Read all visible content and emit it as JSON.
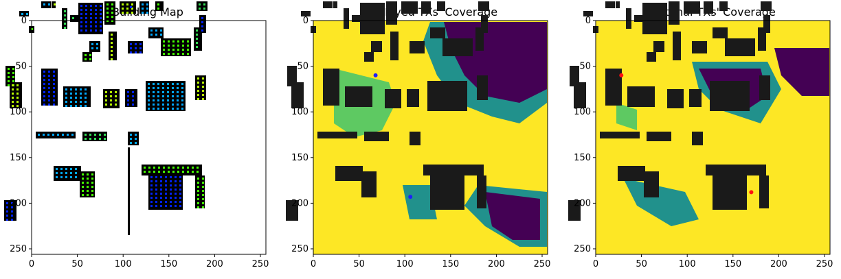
{
  "chart_data": [
    {
      "type": "heatmap",
      "title": "Building Map",
      "xlim": [
        0,
        256
      ],
      "ylim": [
        256,
        0
      ],
      "x_ticks": [
        0,
        50,
        100,
        150,
        200,
        250
      ],
      "y_ticks": [
        0,
        50,
        100,
        150,
        200,
        250
      ],
      "x_tick_labels": [
        "0",
        "50",
        "100",
        "150",
        "200",
        "250"
      ],
      "y_tick_labels": [
        "0",
        "50",
        "100",
        "150",
        "200",
        "250"
      ],
      "background_color": "#ffffff",
      "building_color": "#000000",
      "buildings": [
        {
          "x": 60,
          "y": 2,
          "w": 14,
          "h": 10
        },
        {
          "x": 28,
          "y": 16,
          "w": 14,
          "h": 8
        },
        {
          "x": 75,
          "y": 2,
          "w": 6,
          "h": 10
        },
        {
          "x": 90,
          "y": 12,
          "w": 8,
          "h": 30
        },
        {
          "x": 114,
          "y": 4,
          "w": 36,
          "h": 46
        },
        {
          "x": 152,
          "y": 2,
          "w": 16,
          "h": 34
        },
        {
          "x": 174,
          "y": 2,
          "w": 24,
          "h": 18
        },
        {
          "x": 186,
          "y": 6,
          "w": 12,
          "h": 10
        },
        {
          "x": 203,
          "y": 2,
          "w": 14,
          "h": 18
        },
        {
          "x": 226,
          "y": 2,
          "w": 12,
          "h": 14
        },
        {
          "x": 286,
          "y": 2,
          "w": 16,
          "h": 14
        },
        {
          "x": 290,
          "y": 22,
          "w": 10,
          "h": 26
        },
        {
          "x": 42,
          "y": 38,
          "w": 8,
          "h": 10
        },
        {
          "x": 102,
          "y": 22,
          "w": 12,
          "h": 10
        },
        {
          "x": 130,
          "y": 60,
          "w": 16,
          "h": 16
        },
        {
          "x": 120,
          "y": 76,
          "w": 14,
          "h": 14
        },
        {
          "x": 158,
          "y": 46,
          "w": 12,
          "h": 42
        },
        {
          "x": 186,
          "y": 60,
          "w": 22,
          "h": 18
        },
        {
          "x": 216,
          "y": 40,
          "w": 22,
          "h": 16
        },
        {
          "x": 234,
          "y": 56,
          "w": 44,
          "h": 26
        },
        {
          "x": 282,
          "y": 40,
          "w": 12,
          "h": 34
        },
        {
          "x": 8,
          "y": 96,
          "w": 14,
          "h": 30
        },
        {
          "x": 14,
          "y": 120,
          "w": 18,
          "h": 38
        },
        {
          "x": 60,
          "y": 100,
          "w": 24,
          "h": 54
        },
        {
          "x": 92,
          "y": 126,
          "w": 40,
          "h": 30
        },
        {
          "x": 150,
          "y": 130,
          "w": 24,
          "h": 28
        },
        {
          "x": 182,
          "y": 130,
          "w": 18,
          "h": 26
        },
        {
          "x": 212,
          "y": 118,
          "w": 58,
          "h": 44
        },
        {
          "x": 284,
          "y": 110,
          "w": 16,
          "h": 36
        },
        {
          "x": 52,
          "y": 192,
          "w": 58,
          "h": 10
        },
        {
          "x": 120,
          "y": 192,
          "w": 36,
          "h": 14
        },
        {
          "x": 186,
          "y": 192,
          "w": 16,
          "h": 20
        },
        {
          "x": 206,
          "y": 240,
          "w": 88,
          "h": 16
        },
        {
          "x": 78,
          "y": 242,
          "w": 40,
          "h": 22
        },
        {
          "x": 116,
          "y": 250,
          "w": 22,
          "h": 38
        },
        {
          "x": 216,
          "y": 254,
          "w": 50,
          "h": 52
        },
        {
          "x": 284,
          "y": 256,
          "w": 14,
          "h": 48
        },
        {
          "x": 6,
          "y": 292,
          "w": 18,
          "h": 30
        }
      ],
      "transmitter_colors": [
        "#0022ff",
        "#00a8ff",
        "#44ff00",
        "#b8ff00",
        "#33dd55"
      ]
    },
    {
      "type": "heatmap",
      "title": "Deployed TXs' Coverage",
      "xlim": [
        0,
        256
      ],
      "ylim": [
        256,
        0
      ],
      "x_ticks": [
        0,
        50,
        100,
        150,
        200,
        250
      ],
      "y_ticks": [
        0,
        50,
        100,
        150,
        200,
        250
      ],
      "x_tick_labels": [
        "0",
        "50",
        "100",
        "150",
        "200",
        "250"
      ],
      "y_tick_labels": [
        "0",
        "50",
        "100",
        "150",
        "200",
        "250"
      ],
      "colormap": [
        "#440154",
        "#21918c",
        "#5ec962",
        "#fde725"
      ],
      "building_color": "#1a1a1a",
      "transmitter_color": "#1f1fff",
      "transmitters": [
        {
          "x": 68,
          "y": 60
        },
        {
          "x": 106,
          "y": 193
        }
      ]
    },
    {
      "type": "heatmap",
      "title": "Optimal TXs' Coverage",
      "xlim": [
        0,
        256
      ],
      "ylim": [
        256,
        0
      ],
      "x_ticks": [
        0,
        50,
        100,
        150,
        200,
        250
      ],
      "y_ticks": [
        0,
        50,
        100,
        150,
        200,
        250
      ],
      "x_tick_labels": [
        "0",
        "50",
        "100",
        "150",
        "200",
        "250"
      ],
      "y_tick_labels": [
        "0",
        "50",
        "100",
        "150",
        "200",
        "250"
      ],
      "colormap": [
        "#440154",
        "#21918c",
        "#5ec962",
        "#fde725"
      ],
      "building_color": "#1a1a1a",
      "transmitter_color": "#ff1111",
      "transmitters": [
        {
          "x": 28,
          "y": 60
        },
        {
          "x": 170,
          "y": 188
        }
      ]
    }
  ]
}
